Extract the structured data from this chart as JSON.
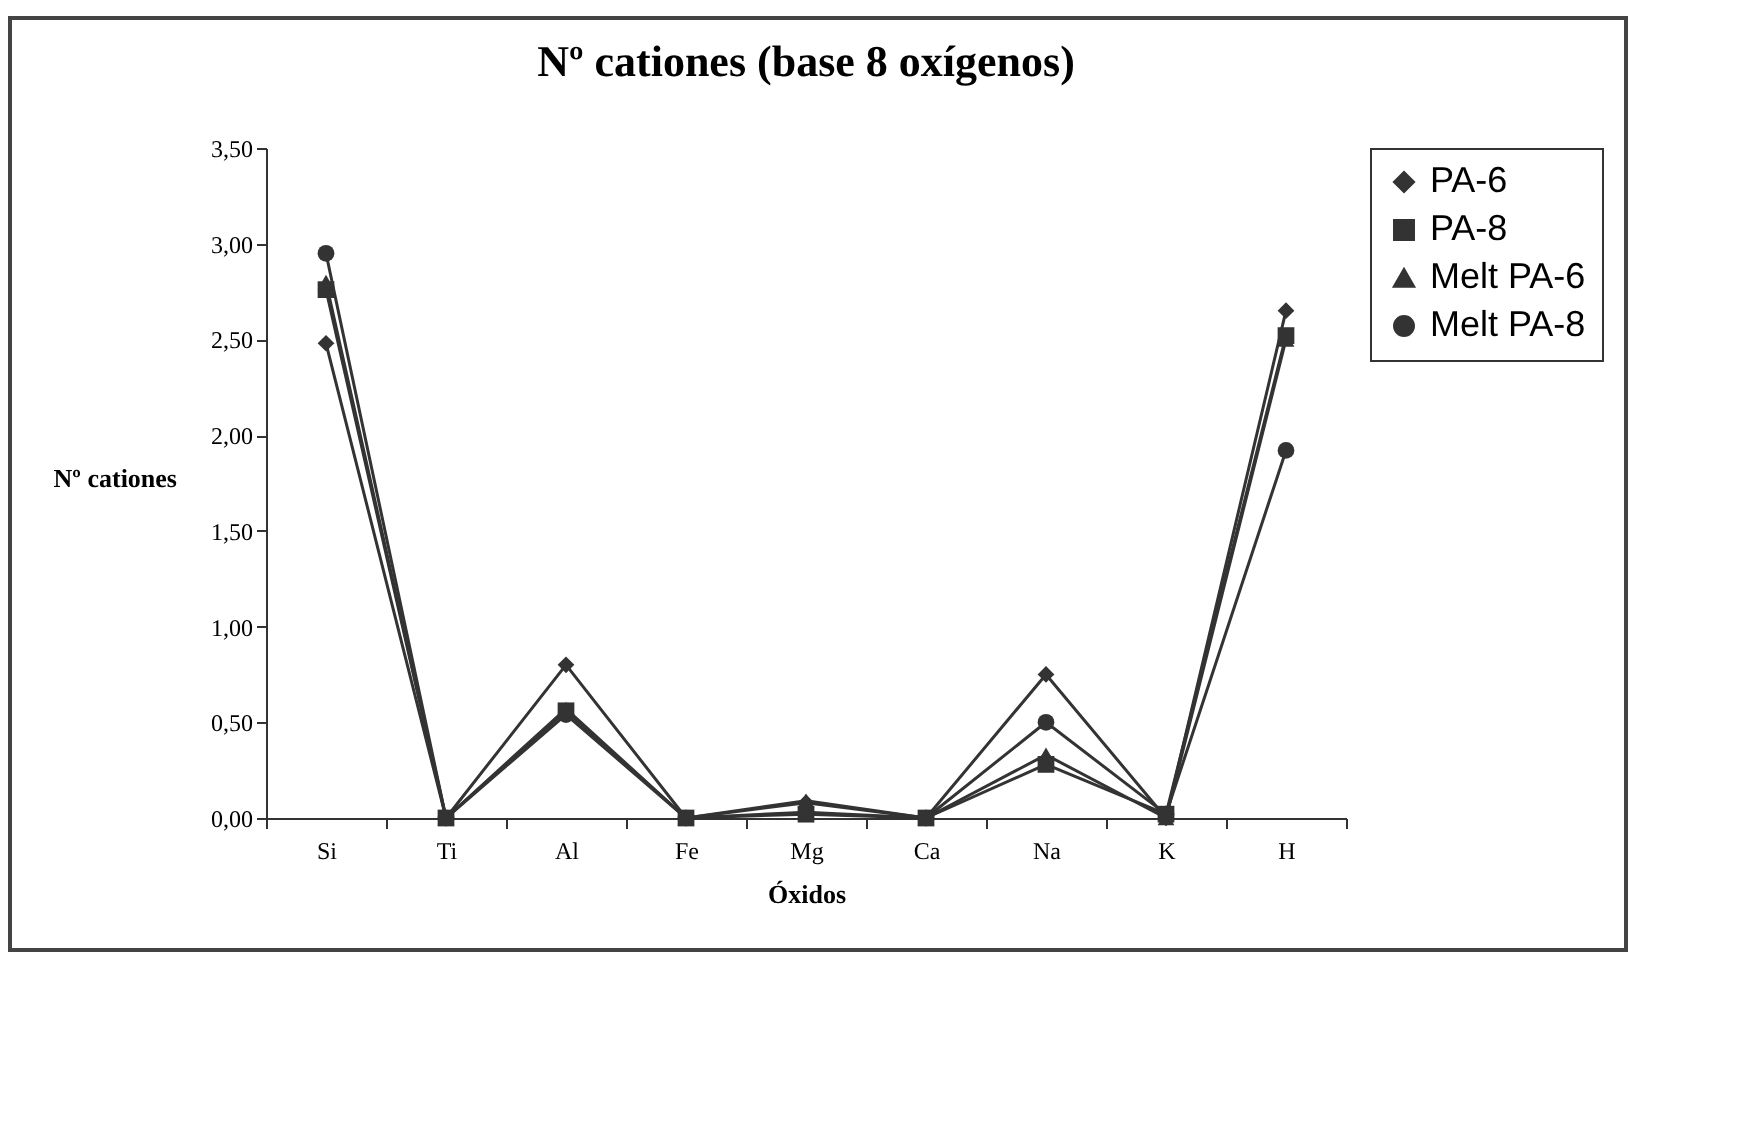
{
  "chart_data": {
    "type": "line",
    "title": "Nº cationes (base 8 oxígenos)",
    "xlabel": "Óxidos",
    "ylabel": "Nº cationes",
    "categories": [
      "Si",
      "Ti",
      "Al",
      "Fe",
      "Mg",
      "Ca",
      "Na",
      "K",
      "H"
    ],
    "series": [
      {
        "name": "PA-6",
        "color": "#333333",
        "marker": "diamond",
        "values": [
          2.48,
          0,
          0.8,
          0,
          0.08,
          0,
          0.75,
          0,
          2.65
        ]
      },
      {
        "name": "PA-8",
        "color": "#333333",
        "marker": "square",
        "values": [
          2.76,
          0,
          0.56,
          0,
          0.02,
          0,
          0.28,
          0.02,
          2.52
        ]
      },
      {
        "name": "Melt PA-6",
        "color": "#333333",
        "marker": "triangle",
        "values": [
          2.8,
          0,
          0.57,
          0,
          0.09,
          0,
          0.33,
          0,
          2.5
        ]
      },
      {
        "name": "Melt PA-8",
        "color": "#333333",
        "marker": "circle",
        "values": [
          2.95,
          0,
          0.54,
          0,
          0.03,
          0,
          0.5,
          0.02,
          1.92
        ]
      }
    ],
    "ylim": [
      0,
      3.5
    ],
    "yticks": [
      {
        "value": 0,
        "label": "0,00"
      },
      {
        "value": 0.5,
        "label": "0,50"
      },
      {
        "value": 1,
        "label": "1,00"
      },
      {
        "value": 1.5,
        "label": "1,50"
      },
      {
        "value": 2,
        "label": "2,00"
      },
      {
        "value": 2.5,
        "label": "2,50"
      },
      {
        "value": 3,
        "label": "3,00"
      },
      {
        "value": 3.5,
        "label": "3,50"
      }
    ],
    "legend": "right",
    "grid": false,
    "line_style": "solid"
  }
}
